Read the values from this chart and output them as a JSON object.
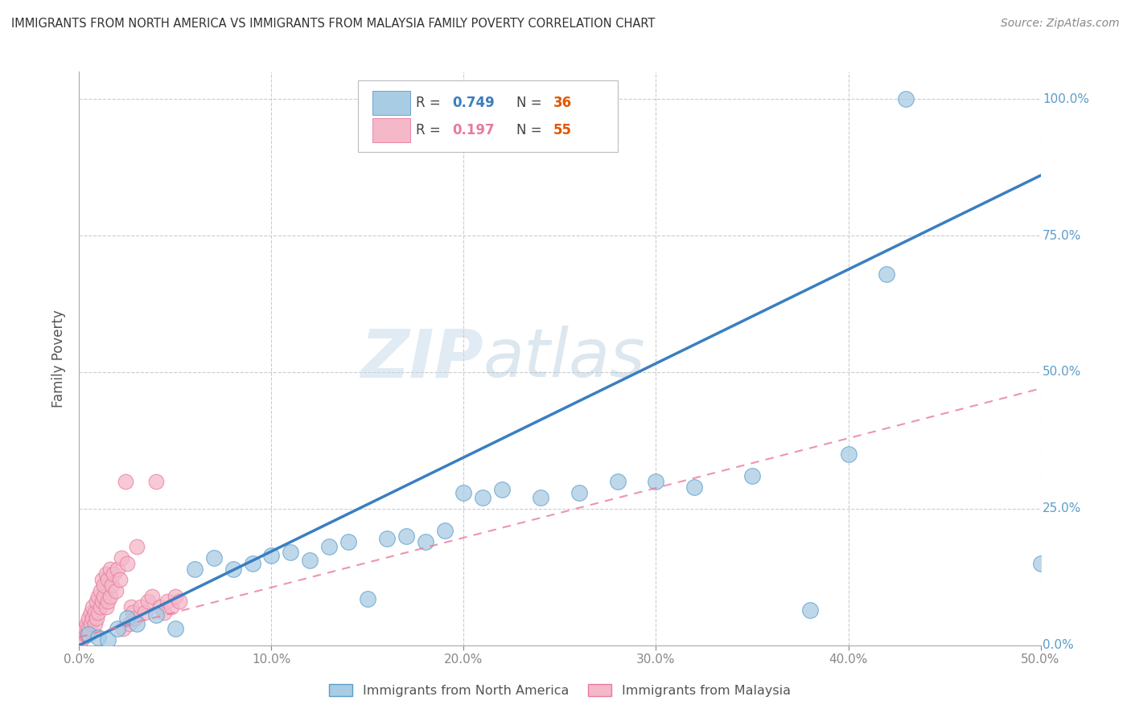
{
  "title": "IMMIGRANTS FROM NORTH AMERICA VS IMMIGRANTS FROM MALAYSIA FAMILY POVERTY CORRELATION CHART",
  "source": "Source: ZipAtlas.com",
  "ylabel": "Family Poverty",
  "xlim": [
    0,
    0.5
  ],
  "ylim": [
    0,
    1.05
  ],
  "x_ticks": [
    0.0,
    0.1,
    0.2,
    0.3,
    0.4,
    0.5
  ],
  "y_ticks": [
    0.0,
    0.25,
    0.5,
    0.75,
    1.0
  ],
  "blue_color": "#a8cce4",
  "blue_edge_color": "#5b9dc9",
  "pink_color": "#f4b8c8",
  "pink_edge_color": "#e87aa0",
  "blue_line_color": "#3a7ec0",
  "pink_line_color": "#e87aa0",
  "watermark_zip": "ZIP",
  "watermark_atlas": "atlas",
  "tick_color_right": "#5b9dc9",
  "tick_color_bottom": "#888888",
  "blue_scatter_x": [
    0.005,
    0.01,
    0.015,
    0.02,
    0.025,
    0.03,
    0.04,
    0.05,
    0.06,
    0.07,
    0.08,
    0.09,
    0.1,
    0.11,
    0.12,
    0.13,
    0.14,
    0.15,
    0.16,
    0.17,
    0.18,
    0.19,
    0.2,
    0.21,
    0.22,
    0.24,
    0.26,
    0.28,
    0.3,
    0.32,
    0.35,
    0.38,
    0.4,
    0.42,
    0.43,
    0.5
  ],
  "blue_scatter_y": [
    0.02,
    0.015,
    0.01,
    0.03,
    0.05,
    0.04,
    0.055,
    0.03,
    0.14,
    0.16,
    0.14,
    0.15,
    0.165,
    0.17,
    0.155,
    0.18,
    0.19,
    0.085,
    0.195,
    0.2,
    0.19,
    0.21,
    0.28,
    0.27,
    0.285,
    0.27,
    0.28,
    0.3,
    0.3,
    0.29,
    0.31,
    0.065,
    0.35,
    0.68,
    1.0,
    0.15
  ],
  "pink_scatter_x": [
    0.001,
    0.002,
    0.003,
    0.003,
    0.004,
    0.004,
    0.005,
    0.005,
    0.006,
    0.006,
    0.007,
    0.007,
    0.008,
    0.008,
    0.009,
    0.009,
    0.01,
    0.01,
    0.011,
    0.011,
    0.012,
    0.012,
    0.013,
    0.013,
    0.014,
    0.014,
    0.015,
    0.015,
    0.016,
    0.016,
    0.017,
    0.018,
    0.019,
    0.02,
    0.021,
    0.022,
    0.023,
    0.024,
    0.025,
    0.026,
    0.027,
    0.028,
    0.029,
    0.03,
    0.032,
    0.034,
    0.036,
    0.038,
    0.04,
    0.042,
    0.044,
    0.046,
    0.048,
    0.05,
    0.052
  ],
  "pink_scatter_y": [
    0.01,
    0.015,
    0.02,
    0.03,
    0.02,
    0.04,
    0.03,
    0.05,
    0.04,
    0.06,
    0.05,
    0.07,
    0.04,
    0.06,
    0.05,
    0.08,
    0.06,
    0.09,
    0.07,
    0.1,
    0.08,
    0.12,
    0.09,
    0.11,
    0.07,
    0.13,
    0.08,
    0.12,
    0.09,
    0.14,
    0.11,
    0.13,
    0.1,
    0.14,
    0.12,
    0.16,
    0.03,
    0.3,
    0.15,
    0.04,
    0.07,
    0.06,
    0.05,
    0.18,
    0.07,
    0.06,
    0.08,
    0.09,
    0.3,
    0.07,
    0.06,
    0.08,
    0.07,
    0.09,
    0.08
  ],
  "blue_line_x": [
    0.0,
    0.5
  ],
  "blue_line_y": [
    0.0,
    0.86
  ],
  "pink_line_x": [
    0.0,
    0.5
  ],
  "pink_line_y": [
    0.015,
    0.47
  ]
}
